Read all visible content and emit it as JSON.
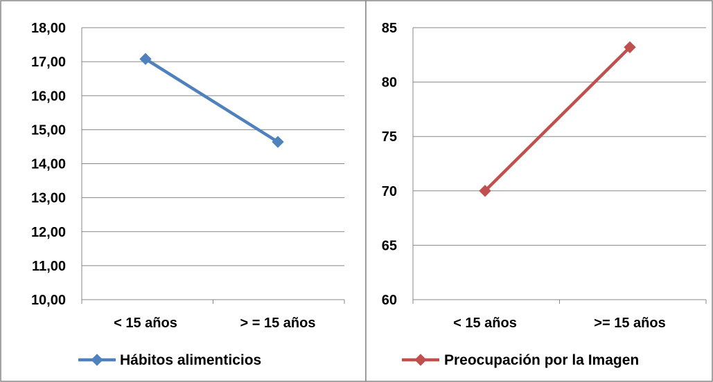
{
  "chart_data": [
    {
      "type": "line",
      "categories": [
        "< 15 años",
        "> = 15 años"
      ],
      "series": [
        {
          "name": "Hábitos alimenticios",
          "values": [
            17.08,
            14.64
          ],
          "color": "#4F81BD",
          "marker": "diamond"
        }
      ],
      "ylim": [
        10,
        18
      ],
      "yticks": [
        "10,00",
        "11,00",
        "12,00",
        "13,00",
        "14,00",
        "15,00",
        "16,00",
        "17,00",
        "18,00"
      ],
      "title": "",
      "xlabel": "",
      "ylabel": "",
      "grid": true,
      "legend_position": "bottom"
    },
    {
      "type": "line",
      "categories": [
        "< 15 años",
        ">= 15 años"
      ],
      "series": [
        {
          "name": "Preocupación por la Imagen",
          "values": [
            70,
            83.2
          ],
          "color": "#C0504D",
          "marker": "diamond"
        }
      ],
      "ylim": [
        60,
        85
      ],
      "yticks": [
        "60",
        "65",
        "70",
        "75",
        "80",
        "85"
      ],
      "title": "",
      "xlabel": "",
      "ylabel": "",
      "grid": true,
      "legend_position": "bottom"
    }
  ]
}
